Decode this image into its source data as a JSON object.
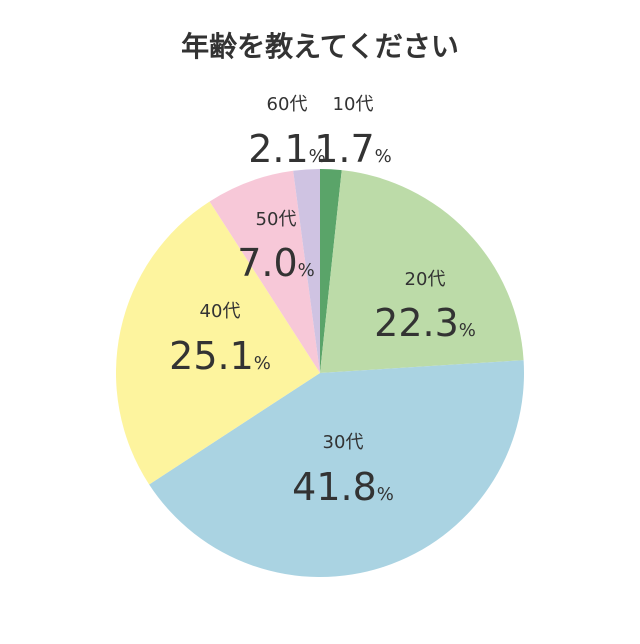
{
  "chart_data": {
    "type": "pie",
    "title": "年齢を教えてください",
    "unit": "%",
    "start_angle_deg": 0,
    "direction": "clockwise",
    "slices": [
      {
        "label": "10代",
        "value": 1.7,
        "value_text": "1.7",
        "color": "#5aa469"
      },
      {
        "label": "20代",
        "value": 22.3,
        "value_text": "22.3",
        "color": "#bcdba8"
      },
      {
        "label": "30代",
        "value": 41.8,
        "value_text": "41.8",
        "color": "#aad3e2"
      },
      {
        "label": "40代",
        "value": 25.1,
        "value_text": "25.1",
        "color": "#fdf49e"
      },
      {
        "label": "50代",
        "value": 7.0,
        "value_text": "7.0",
        "color": "#f7c8d8"
      },
      {
        "label": "60代",
        "value": 2.1,
        "value_text": "2.1",
        "color": "#cfc3e2"
      }
    ]
  }
}
